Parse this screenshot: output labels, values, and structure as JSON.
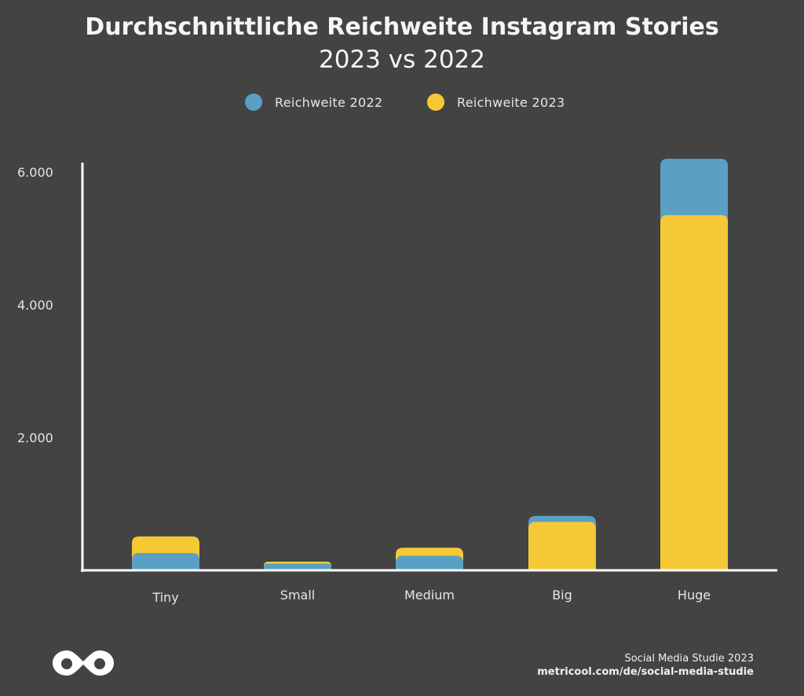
{
  "title": "Durchschnittliche Reichweite Instagram Stories",
  "subtitle": "2023 vs 2022",
  "legend": [
    {
      "label": "Reichweite 2022",
      "color": "#5b9fc5"
    },
    {
      "label": "Reichweite 2023",
      "color": "#f5c935"
    }
  ],
  "chart_data": {
    "type": "bar",
    "categories": [
      "Tiny",
      "Small",
      "Medium",
      "Big",
      "Huge"
    ],
    "series": [
      {
        "name": "Reichweite 2022",
        "color": "#5b9fc5",
        "values": [
          260,
          100,
          220,
          820,
          6200
        ]
      },
      {
        "name": "Reichweite 2023",
        "color": "#f5c935",
        "values": [
          510,
          130,
          340,
          730,
          5350
        ]
      }
    ],
    "yticks": [
      "2.000",
      "4.000",
      "6.000"
    ],
    "ylim": [
      0,
      6200
    ]
  },
  "footer": {
    "line1": "Social Media Studie 2023",
    "line2": "metricool.com/de/social-media-studie"
  }
}
